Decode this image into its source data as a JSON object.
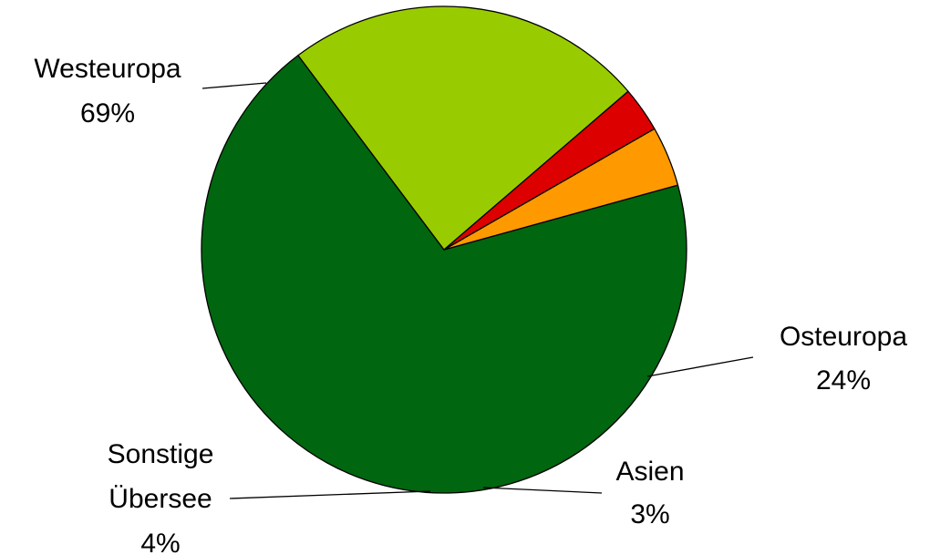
{
  "chart_data": {
    "type": "pie",
    "title": "",
    "slices": [
      {
        "label_lines": [
          "Westeuropa"
        ],
        "percent_label": "69%",
        "value": 69,
        "color": "#006610"
      },
      {
        "label_lines": [
          "Osteuropa"
        ],
        "percent_label": "24%",
        "value": 24,
        "color": "#99CC00"
      },
      {
        "label_lines": [
          "Asien"
        ],
        "percent_label": "3%",
        "value": 3,
        "color": "#DD0000"
      },
      {
        "label_lines": [
          "Sonstige",
          "Übersee"
        ],
        "percent_label": "4%",
        "value": 4,
        "color": "#FF9900"
      }
    ]
  }
}
